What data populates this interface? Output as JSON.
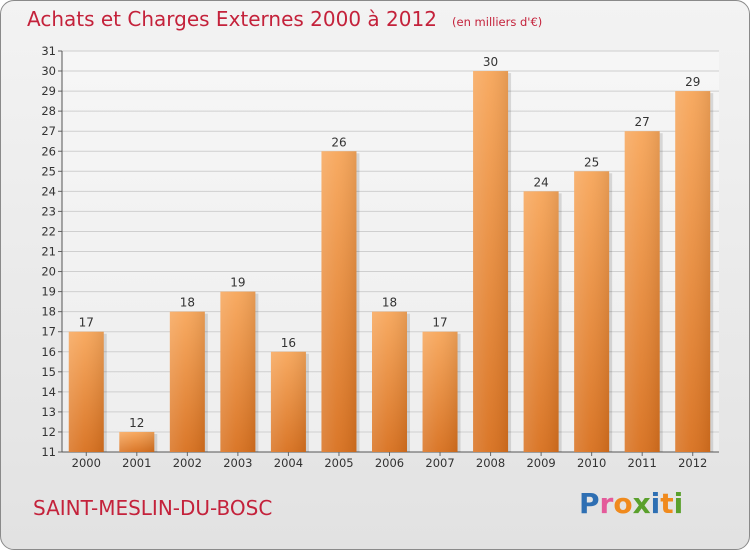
{
  "header": {
    "title": "Achats et Charges Externes 2000 à 2012",
    "subtitle": "(en milliers d'€)"
  },
  "footer": {
    "commune": "SAINT-MESLIN-DU-BOSC",
    "logo_text": "Proxiti"
  },
  "colors": {
    "title": "#c4223b",
    "bar_top": "#f7a65a",
    "bar_bottom": "#d8701e",
    "logo_letters": [
      "#2e6fb3",
      "#e45a9a",
      "#f08a1d",
      "#5aa02c",
      "#2e6fb3",
      "#f08a1d",
      "#5aa02c"
    ]
  },
  "chart_data": {
    "type": "bar",
    "categories": [
      "2000",
      "2001",
      "2002",
      "2003",
      "2004",
      "2005",
      "2006",
      "2007",
      "2008",
      "2009",
      "2010",
      "2011",
      "2012"
    ],
    "values": [
      17,
      12,
      18,
      19,
      16,
      26,
      18,
      17,
      30,
      24,
      25,
      27,
      29
    ],
    "ylim": [
      11,
      31
    ],
    "yticks": [
      11,
      12,
      13,
      14,
      15,
      16,
      17,
      18,
      19,
      20,
      21,
      22,
      23,
      24,
      25,
      26,
      27,
      28,
      29,
      30,
      31
    ],
    "grid": true,
    "data_labels": true
  }
}
